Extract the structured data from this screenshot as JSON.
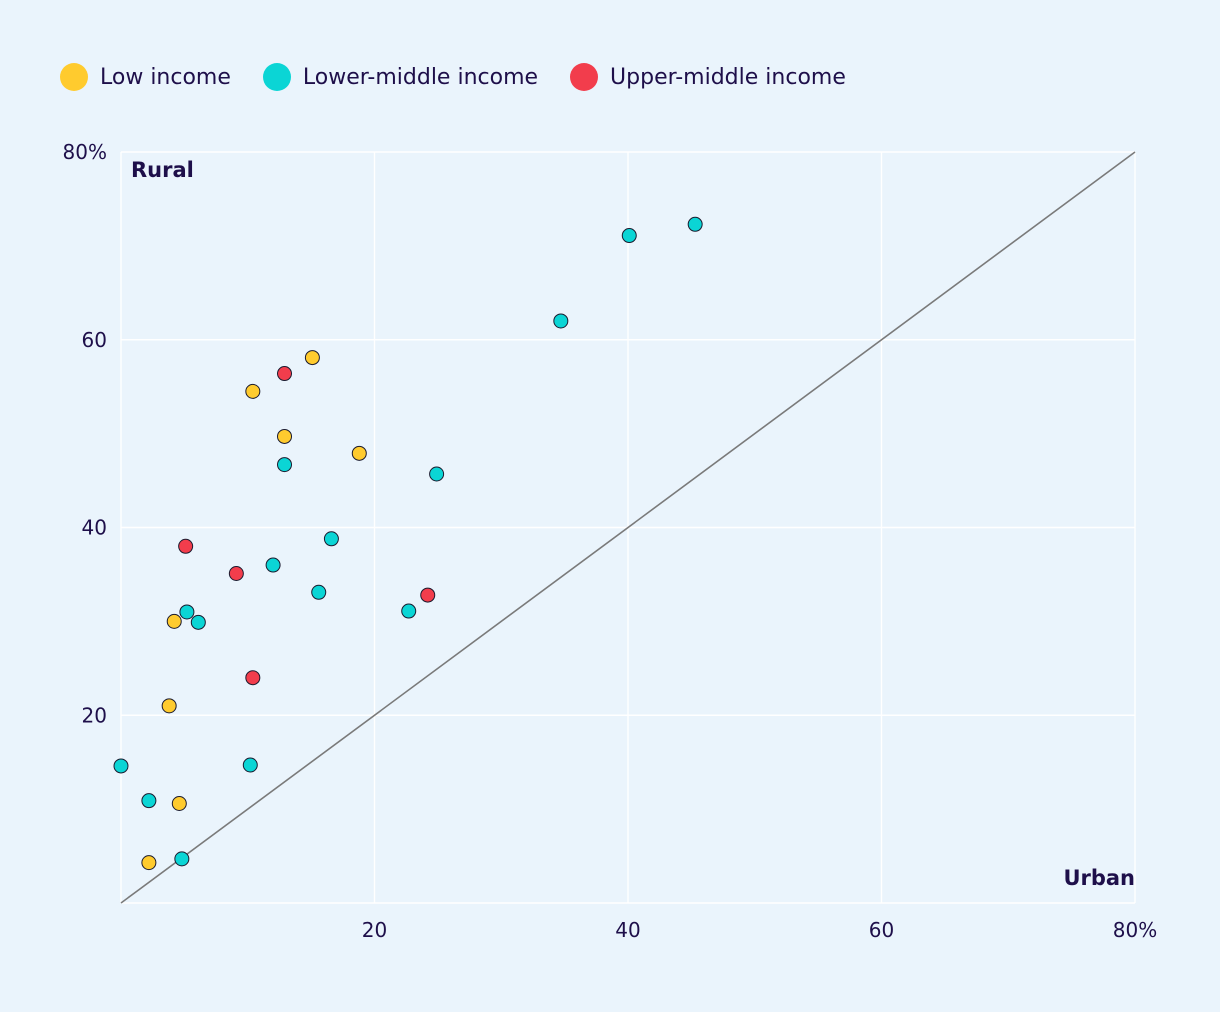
{
  "chart_data": {
    "type": "scatter",
    "title": "",
    "xlabel": "Urban",
    "ylabel": "Rural",
    "xlim": [
      0,
      80
    ],
    "ylim": [
      0,
      80
    ],
    "x_ticks": [
      "20",
      "40",
      "60",
      "80%"
    ],
    "y_ticks": [
      "20",
      "40",
      "60",
      "80%"
    ],
    "grid": true,
    "reference_line": "y = x",
    "legend_position": "top-left",
    "series": [
      {
        "name": "Low income",
        "color": "#ffcb2e",
        "points": [
          {
            "x": 2.2,
            "y": 4.3
          },
          {
            "x": 4.6,
            "y": 10.6
          },
          {
            "x": 3.8,
            "y": 21.0
          },
          {
            "x": 4.2,
            "y": 30.0
          },
          {
            "x": 10.4,
            "y": 54.5
          },
          {
            "x": 12.9,
            "y": 49.7
          },
          {
            "x": 15.1,
            "y": 58.1
          },
          {
            "x": 18.8,
            "y": 47.9
          }
        ]
      },
      {
        "name": "Lower-middle income",
        "color": "#0bd5d5",
        "points": [
          {
            "x": 0.0,
            "y": 14.6
          },
          {
            "x": 2.2,
            "y": 10.9
          },
          {
            "x": 4.8,
            "y": 4.7
          },
          {
            "x": 10.2,
            "y": 14.7
          },
          {
            "x": 5.2,
            "y": 31.0
          },
          {
            "x": 6.1,
            "y": 29.9
          },
          {
            "x": 12.0,
            "y": 36.0
          },
          {
            "x": 15.6,
            "y": 33.1
          },
          {
            "x": 16.6,
            "y": 38.8
          },
          {
            "x": 12.9,
            "y": 46.7
          },
          {
            "x": 22.7,
            "y": 31.1
          },
          {
            "x": 24.9,
            "y": 45.7
          },
          {
            "x": 34.7,
            "y": 62.0
          },
          {
            "x": 40.1,
            "y": 71.1
          },
          {
            "x": 45.3,
            "y": 72.3
          }
        ]
      },
      {
        "name": "Upper-middle income",
        "color": "#f23d4c",
        "points": [
          {
            "x": 5.1,
            "y": 38.0
          },
          {
            "x": 9.1,
            "y": 35.1
          },
          {
            "x": 10.4,
            "y": 24.0
          },
          {
            "x": 12.9,
            "y": 56.4
          },
          {
            "x": 24.2,
            "y": 32.8
          }
        ]
      }
    ]
  }
}
